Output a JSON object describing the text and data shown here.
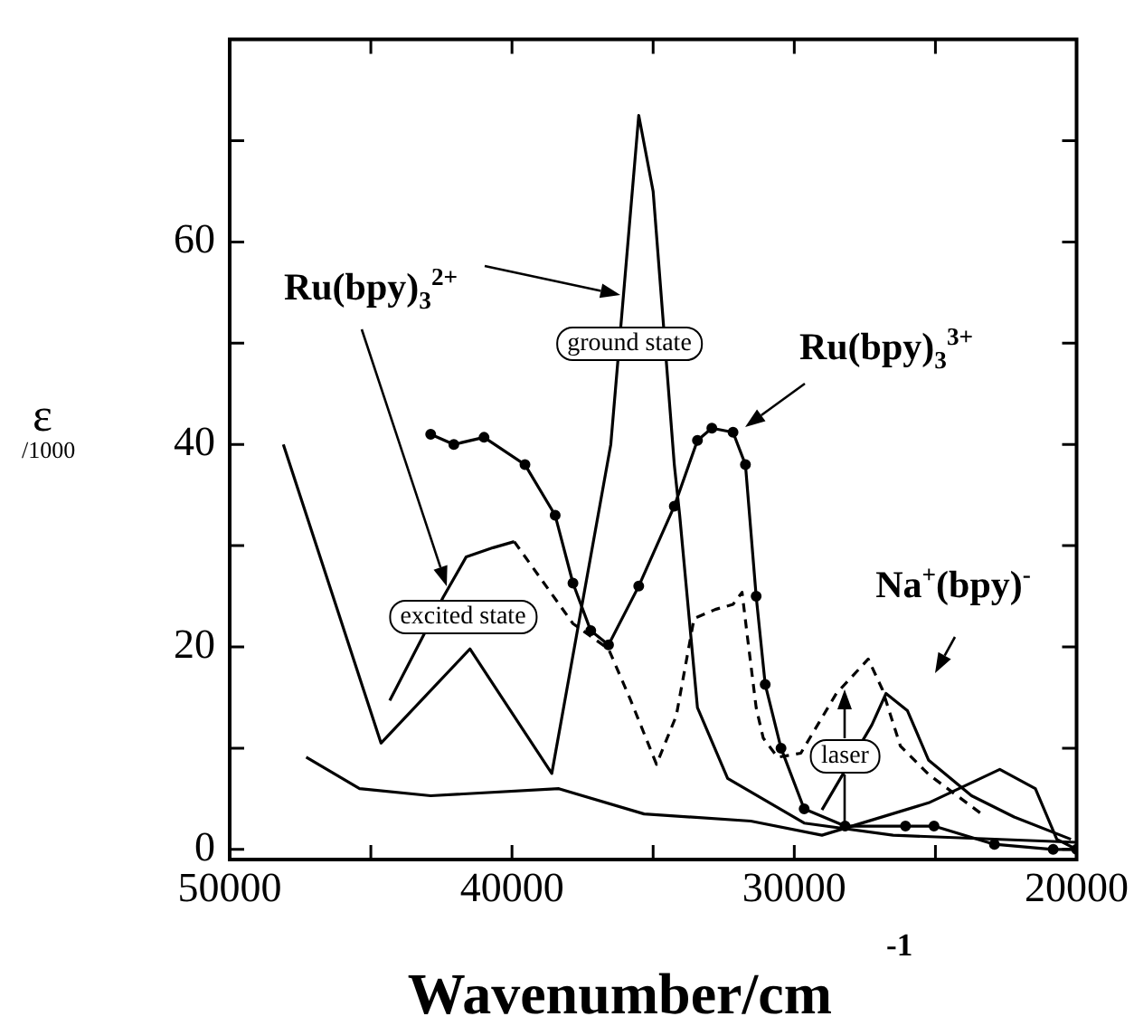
{
  "chart_data": {
    "type": "line",
    "xlabel": "Wavenumber/cm$^{-1}$",
    "ylabel": "ε$_{/1000}$",
    "xlim": [
      50000,
      20000
    ],
    "xticks": [
      50000,
      {
        "value": 45000,
        "label": null
      },
      40000,
      {
        "value": 35000,
        "label": null
      },
      30000,
      {
        "value": 25000,
        "label": null
      },
      20000
    ],
    "ylim": [
      -1,
      80
    ],
    "yticks": [
      0,
      {
        "value": 10,
        "label": null
      },
      20,
      {
        "value": 30,
        "label": null
      },
      40,
      {
        "value": 50,
        "label": null
      },
      60,
      {
        "value": 70,
        "label": null
      }
    ],
    "grid": false,
    "legend": false,
    "marker": "none",
    "series": [
      {
        "color": "#000000",
        "line_style": "solid",
        "x": [
          48100,
          44640,
          41490,
          38590,
          36500,
          35510,
          35000,
          34250,
          34060,
          33430,
          32360,
          29650,
          26500,
          20000
        ],
        "values": [
          40,
          10.5,
          19.8,
          7.5,
          40,
          72.5,
          65,
          38,
          33,
          14,
          7,
          2.6,
          1.4,
          0.7
        ]
      },
      {
        "color": "#000000",
        "line_style": "solid",
        "x": [
          44330,
          42440,
          41620,
          40670,
          39920
        ],
        "values": [
          14.7,
          24.9,
          28.9,
          29.8,
          30.4
        ]
      },
      {
        "color": "#000000",
        "line_style": "dashed",
        "x": [
          39920,
          37840,
          36580,
          35820,
          34880,
          34180,
          33550,
          32800,
          32170,
          31850,
          31660,
          31350,
          31100,
          30590,
          29770,
          28510,
          27380,
          26880,
          26240,
          25240,
          23220
        ],
        "values": [
          30.4,
          22.3,
          19.8,
          14.9,
          8.4,
          13.2,
          22.8,
          23.7,
          24.2,
          25.4,
          21,
          14,
          11,
          9.1,
          9.5,
          15.4,
          18.8,
          15.8,
          10.2,
          7.4,
          3.2
        ]
      },
      {
        "color": "#000000",
        "line_style": "solid",
        "marker": "circle",
        "x": [
          42880,
          42060,
          40990,
          39540,
          38470,
          37840,
          37210,
          36580,
          35510,
          34250,
          33430,
          32920,
          32170,
          31730,
          31350,
          31030,
          30470,
          29650,
          28200,
          26060,
          25050,
          22910,
          20830,
          20000
        ],
        "values": [
          41,
          40,
          40.7,
          38,
          33,
          26.3,
          21.6,
          20.2,
          26,
          33.9,
          40.4,
          41.6,
          41.2,
          38,
          25,
          16.3,
          10,
          4,
          2.3,
          2.3,
          2.3,
          0.5,
          0,
          0
        ]
      },
      {
        "color": "#000000",
        "line_style": "solid",
        "x": [
          29020,
          27250,
          26750,
          25990,
          25240,
          23720,
          22210,
          20200
        ],
        "values": [
          3.9,
          12.3,
          15.4,
          13.7,
          8.8,
          5.3,
          3.2,
          1
        ]
      },
      {
        "color": "#000000",
        "line_style": "solid",
        "x": [
          47290,
          45400,
          42880,
          38340,
          35320,
          31540,
          29020,
          25240,
          22720,
          21460,
          20700,
          20000
        ],
        "values": [
          9.1,
          6,
          5.3,
          6,
          3.5,
          2.8,
          1.4,
          4.6,
          7.9,
          6,
          1,
          0
        ]
      }
    ],
    "annotations": [
      "Ru(bpy)$_{3}$$^{2+}$",
      "ground state",
      "excited state",
      "Ru(bpy)$_{3}$$^{3+}$",
      "Na$^{+}$(bpy)$^{-}$",
      {
        "text": "laser",
        "x": 28200,
        "y": 15.8
      }
    ]
  }
}
